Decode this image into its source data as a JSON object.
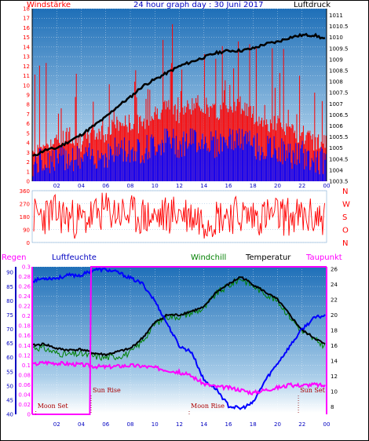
{
  "title": "24 hour graph day : 30 Juni 2017",
  "colors": {
    "wind": "#ff0000",
    "gust_bg": "#0000ff",
    "pressure": "#000000",
    "humidity": "#0000ff",
    "windchill": "#008000",
    "temperature": "#000000",
    "dewpoint": "#ff00ff",
    "rain": "#ff00ff",
    "axis_blue": "#0000c0",
    "sky_top": "#1e6fb8",
    "sky_bottom": "#ffffff"
  },
  "chart_data": [
    {
      "type": "line",
      "name": "wind-pressure",
      "left_label": "Windstärke",
      "right_label": "Luftdruck",
      "x_ticks": [
        "02",
        "04",
        "06",
        "08",
        "10",
        "12",
        "14",
        "16",
        "18",
        "20",
        "22",
        "00"
      ],
      "y_left_ticks": [
        "0",
        "1",
        "2",
        "3",
        "4",
        "5",
        "6",
        "7",
        "8",
        "9",
        "10",
        "11",
        "12",
        "13",
        "14",
        "15",
        "16",
        "17",
        "18"
      ],
      "y_left_range": [
        0,
        18
      ],
      "y_right_ticks": [
        "1003.5",
        "1004",
        "1004.5",
        "1005",
        "1005.5",
        "1006",
        "1006.5",
        "1007",
        "1007.5",
        "1008",
        "1008.5",
        "1009",
        "1009.5",
        "1010",
        "1010.5",
        "1011"
      ],
      "y_right_range": [
        1003.5,
        1011.3
      ],
      "series": [
        {
          "role": "wind",
          "x": [
            0,
            1,
            2,
            3,
            4,
            5,
            6,
            7,
            8,
            9,
            10,
            11,
            12,
            13,
            14,
            15,
            16,
            17,
            18,
            19,
            20,
            21,
            22,
            23,
            24
          ],
          "y": [
            3,
            4,
            4,
            5,
            4,
            5,
            5,
            6,
            6,
            6,
            7,
            8,
            7,
            8,
            8,
            7,
            8,
            8,
            7,
            6,
            6,
            5,
            5,
            4,
            4
          ]
        },
        {
          "role": "pressure",
          "x": [
            0,
            1,
            2,
            3,
            4,
            5,
            6,
            7,
            8,
            9,
            10,
            11,
            12,
            13,
            14,
            15,
            16,
            17,
            18,
            19,
            20,
            21,
            22,
            23,
            24
          ],
          "y": [
            1004.6,
            1004.9,
            1005.0,
            1005.3,
            1005.6,
            1006.0,
            1006.4,
            1006.9,
            1007.3,
            1007.8,
            1008.1,
            1008.4,
            1008.7,
            1008.9,
            1009.1,
            1009.3,
            1009.4,
            1009.4,
            1009.5,
            1009.7,
            1009.8,
            1010.0,
            1010.1,
            1010.1,
            1009.9
          ]
        }
      ]
    },
    {
      "type": "line",
      "name": "wind-direction",
      "right_label": "N W S O N",
      "right_letters": [
        "N",
        "W",
        "S",
        "O",
        "N"
      ],
      "y_left_ticks": [
        "0",
        "90",
        "180",
        "270",
        "360"
      ],
      "y_range": [
        0,
        360
      ],
      "series": [
        {
          "role": "direction",
          "x": [
            0,
            2,
            4,
            6,
            8,
            10,
            12,
            14,
            16,
            18,
            20,
            22,
            24
          ],
          "y": [
            180,
            200,
            150,
            220,
            190,
            170,
            210,
            160,
            200,
            180,
            190,
            170,
            180
          ]
        }
      ]
    },
    {
      "type": "line",
      "name": "climate",
      "labels": {
        "rain": "Regen",
        "humidity": "Luftfeuchte",
        "windchill": "Windchill",
        "temperature": "Temperatur",
        "dewpoint": "Taupunkt"
      },
      "x_ticks": [
        "02",
        "04",
        "06",
        "08",
        "10",
        "12",
        "14",
        "16",
        "18",
        "20",
        "22",
        "00"
      ],
      "y_rain_ticks": [
        "0",
        "0.02",
        "0.04",
        "0.06",
        "0.08",
        "0.1",
        "0.12",
        "0.14",
        "0.16",
        "0.18",
        "0.2",
        "0.22",
        "0.24",
        "0.26",
        "0.28",
        "0.3"
      ],
      "y_rain_range": [
        0,
        0.3
      ],
      "y_humidity_ticks": [
        "40",
        "45",
        "50",
        "55",
        "60",
        "65",
        "70",
        "75",
        "80",
        "85",
        "90"
      ],
      "y_humidity_range": [
        40,
        92
      ],
      "y_temp_ticks": [
        "8",
        "10",
        "12",
        "14",
        "16",
        "18",
        "20",
        "22",
        "24",
        "26"
      ],
      "y_temp_range": [
        7,
        26.3
      ],
      "events": [
        {
          "label": "Moon Set",
          "hour": 0.3,
          "level": "bottom"
        },
        {
          "label": "Sun Rise",
          "hour": 4.8,
          "level": "middle"
        },
        {
          "label": "Moon Rise",
          "hour": 12.8,
          "level": "bottom"
        },
        {
          "label": "Sun Set",
          "hour": 21.7,
          "level": "middle"
        }
      ],
      "series": [
        {
          "role": "humidity",
          "x": [
            0,
            1,
            2,
            3,
            4,
            5,
            6,
            7,
            8,
            9,
            10,
            11,
            12,
            13,
            14,
            15,
            16,
            17,
            18,
            19,
            20,
            21,
            22,
            23,
            24
          ],
          "y": [
            87,
            88,
            88,
            89,
            89,
            91,
            91,
            90,
            88,
            86,
            80,
            72,
            64,
            62,
            52,
            49,
            43,
            42,
            44,
            52,
            58,
            64,
            70,
            74,
            75
          ]
        },
        {
          "role": "temperature",
          "x": [
            0,
            1,
            2,
            3,
            4,
            5,
            6,
            7,
            8,
            9,
            10,
            11,
            12,
            13,
            14,
            15,
            16,
            17,
            18,
            19,
            20,
            21,
            22,
            23,
            24
          ],
          "y": [
            16,
            16.2,
            15.6,
            15.4,
            15.5,
            15.0,
            14.8,
            15.2,
            15.6,
            17,
            19,
            20,
            20,
            20.5,
            21,
            23,
            24,
            25,
            24,
            23,
            22,
            20,
            18,
            17,
            16
          ]
        },
        {
          "role": "windchill",
          "x": [
            0,
            1,
            2,
            3,
            4,
            5,
            6,
            7,
            8,
            9,
            10,
            11,
            12,
            13,
            14,
            15,
            16,
            17,
            18,
            19,
            20,
            21,
            22,
            23,
            24
          ],
          "y": [
            15.8,
            15.6,
            15.0,
            14.8,
            14.9,
            14.6,
            14.4,
            14.6,
            15.0,
            16.6,
            18.8,
            19.8,
            19.8,
            20.3,
            20.8,
            22.8,
            23.8,
            24.8,
            23.8,
            22.8,
            21.8,
            19.8,
            17.8,
            16.8,
            15.8
          ]
        },
        {
          "role": "dewpoint",
          "x": [
            0,
            1,
            2,
            3,
            4,
            5,
            6,
            7,
            8,
            9,
            10,
            11,
            12,
            13,
            14,
            15,
            16,
            17,
            18,
            19,
            20,
            21,
            22,
            23,
            24
          ],
          "y": [
            13.5,
            13.8,
            13.7,
            13.6,
            13.5,
            13.3,
            13.2,
            13.3,
            13.4,
            13.3,
            13.1,
            12.8,
            12.5,
            12.0,
            11.0,
            10.6,
            10.5,
            10.2,
            9.8,
            10.2,
            10.5,
            10.8,
            10.8,
            10.9,
            10.7
          ]
        },
        {
          "role": "rain",
          "x": [
            0,
            4.7,
            4.8,
            24
          ],
          "y": [
            0,
            0,
            0.3,
            0.3
          ]
        }
      ]
    }
  ]
}
